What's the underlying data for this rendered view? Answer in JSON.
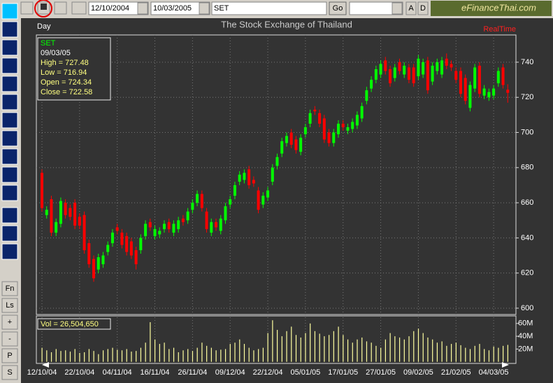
{
  "toolbar": {
    "start_date": "12/10/2004",
    "end_date": "10/03/2005",
    "symbol": "SET",
    "go": "Go",
    "a": "A",
    "d": "D",
    "logo": "eFinanceThai.com"
  },
  "side_buttons": [
    "Fn",
    "Ls",
    "+",
    "-",
    "P",
    "S"
  ],
  "chart_data": {
    "type": "candlestick",
    "title": "The Stock Exchange of Thailand",
    "period": "Day",
    "status": "RealTime",
    "info": {
      "symbol": "SET",
      "date": "09/03/05",
      "high": "High  = 727.48",
      "low": "Low  = 716.94",
      "open": "Open = 724.34",
      "close": "Close = 722.58"
    },
    "open": [
      677,
      653,
      662,
      643,
      648,
      660,
      657,
      660,
      652,
      653,
      637,
      628,
      622,
      625,
      632,
      637,
      646,
      643,
      641,
      638,
      633,
      633,
      641,
      649,
      641,
      642,
      645,
      649,
      643,
      645,
      651,
      650,
      656,
      660,
      665,
      655,
      643,
      649,
      644,
      650,
      659,
      664,
      672,
      673,
      679,
      673,
      667,
      659,
      663,
      672,
      681,
      688,
      694,
      700,
      696,
      689,
      699,
      705,
      713,
      711,
      708,
      700,
      694,
      699,
      705,
      701,
      702,
      704,
      708,
      718,
      725,
      730,
      733,
      741,
      736,
      731,
      740,
      733,
      737,
      737,
      732,
      733,
      741,
      729,
      735,
      733,
      742,
      739,
      735,
      735,
      731,
      714,
      725,
      738,
      721,
      720,
      721,
      728,
      737,
      724.34
    ],
    "high": [
      679,
      658,
      664,
      651,
      663,
      662,
      659,
      662,
      654,
      655,
      639,
      630,
      631,
      632,
      638,
      645,
      648,
      645,
      643,
      640,
      635,
      642,
      650,
      651,
      647,
      646,
      650,
      651,
      650,
      652,
      653,
      657,
      662,
      667,
      667,
      657,
      651,
      651,
      653,
      660,
      664,
      672,
      678,
      679,
      681,
      675,
      669,
      666,
      669,
      682,
      688,
      697,
      700,
      702,
      698,
      699,
      705,
      713,
      715,
      713,
      710,
      702,
      702,
      707,
      707,
      705,
      708,
      712,
      717,
      726,
      732,
      738,
      741,
      743,
      738,
      739,
      742,
      740,
      739,
      739,
      744,
      742,
      743,
      740,
      742,
      743,
      745,
      741,
      737,
      737,
      733,
      729,
      739,
      740,
      727,
      725,
      727,
      737,
      739,
      727.48
    ],
    "low": [
      655,
      651,
      641,
      641,
      646,
      651,
      650,
      645,
      645,
      631,
      623,
      615,
      620,
      623,
      630,
      635,
      642,
      634,
      630,
      628,
      622,
      631,
      639,
      644,
      639,
      640,
      643,
      643,
      641,
      643,
      647,
      648,
      654,
      658,
      655,
      643,
      641,
      644,
      642,
      648,
      657,
      662,
      670,
      671,
      668,
      669,
      654,
      657,
      661,
      670,
      679,
      686,
      692,
      691,
      688,
      687,
      697,
      703,
      710,
      703,
      694,
      692,
      692,
      697,
      701,
      699,
      700,
      702,
      706,
      716,
      723,
      728,
      731,
      733,
      726,
      729,
      733,
      731,
      728,
      726,
      730,
      731,
      722,
      727,
      733,
      731,
      736,
      735,
      728,
      720,
      716,
      712,
      723,
      720,
      719,
      718,
      719,
      726,
      725,
      716.94
    ],
    "close": [
      657,
      656,
      643,
      649,
      661,
      653,
      652,
      647,
      647,
      633,
      625,
      617,
      629,
      630,
      636,
      643,
      644,
      636,
      632,
      630,
      625,
      640,
      648,
      646,
      645,
      644,
      648,
      645,
      648,
      650,
      649,
      655,
      660,
      665,
      657,
      645,
      649,
      646,
      651,
      658,
      662,
      670,
      676,
      677,
      670,
      671,
      656,
      664,
      667,
      680,
      686,
      695,
      698,
      693,
      690,
      697,
      703,
      711,
      712,
      705,
      696,
      694,
      700,
      705,
      703,
      703,
      706,
      710,
      715,
      724,
      730,
      736,
      739,
      735,
      728,
      737,
      735,
      738,
      730,
      728,
      742,
      740,
      724,
      738,
      740,
      741,
      738,
      737,
      730,
      722,
      718,
      727,
      737,
      722,
      725,
      723,
      725,
      735,
      727,
      722.58
    ],
    "up_color": "#00ff00",
    "down_color": "#ff0000",
    "ylim": [
      596.4,
      755.5
    ],
    "yticks": [
      600,
      620,
      640,
      660,
      680,
      700,
      720,
      740
    ],
    "grid": true,
    "xticks": [
      {
        "value": 0,
        "label": "12/10/04"
      },
      {
        "value": 8,
        "label": "22/10/04"
      },
      {
        "value": 16,
        "label": "04/11/04"
      },
      {
        "value": 24,
        "label": "16/11/04"
      },
      {
        "value": 32,
        "label": "26/11/04"
      },
      {
        "value": 40,
        "label": "09/12/04"
      },
      {
        "value": 48,
        "label": "22/12/04"
      },
      {
        "value": 56,
        "label": "05/01/05"
      },
      {
        "value": 64,
        "label": "17/01/05"
      },
      {
        "value": 72,
        "label": "27/01/05"
      },
      {
        "value": 80,
        "label": "09/02/05"
      },
      {
        "value": 88,
        "label": "21/02/05"
      },
      {
        "value": 96,
        "label": "04/03/05"
      }
    ],
    "volume": {
      "label": "Vol = 26,504,650",
      "color": "#ffffa0",
      "ylim": [
        -2.5,
        71.8
      ],
      "yticks": [
        {
          "value": 20,
          "label": "20M"
        },
        {
          "value": 40,
          "label": "40M"
        },
        {
          "value": 60,
          "label": "60M"
        }
      ],
      "values": [
        22,
        18,
        15,
        20,
        17,
        18,
        16,
        20,
        14,
        15,
        20,
        17,
        12,
        18,
        20,
        22,
        19,
        18,
        20,
        16,
        17,
        22,
        30,
        62,
        35,
        28,
        30,
        20,
        22,
        15,
        18,
        20,
        17,
        22,
        30,
        25,
        22,
        18,
        19,
        20,
        28,
        30,
        35,
        28,
        22,
        18,
        20,
        22,
        45,
        65,
        50,
        40,
        48,
        55,
        42,
        38,
        45,
        60,
        48,
        44,
        40,
        42,
        48,
        55,
        42,
        35,
        30,
        35,
        38,
        32,
        30,
        25,
        22,
        35,
        45,
        40,
        38,
        35,
        40,
        48,
        52,
        45,
        38,
        35,
        30,
        32,
        25,
        28,
        30,
        26,
        22,
        20,
        25,
        28,
        20,
        18,
        24,
        22,
        25,
        26.50465
      ]
    }
  }
}
